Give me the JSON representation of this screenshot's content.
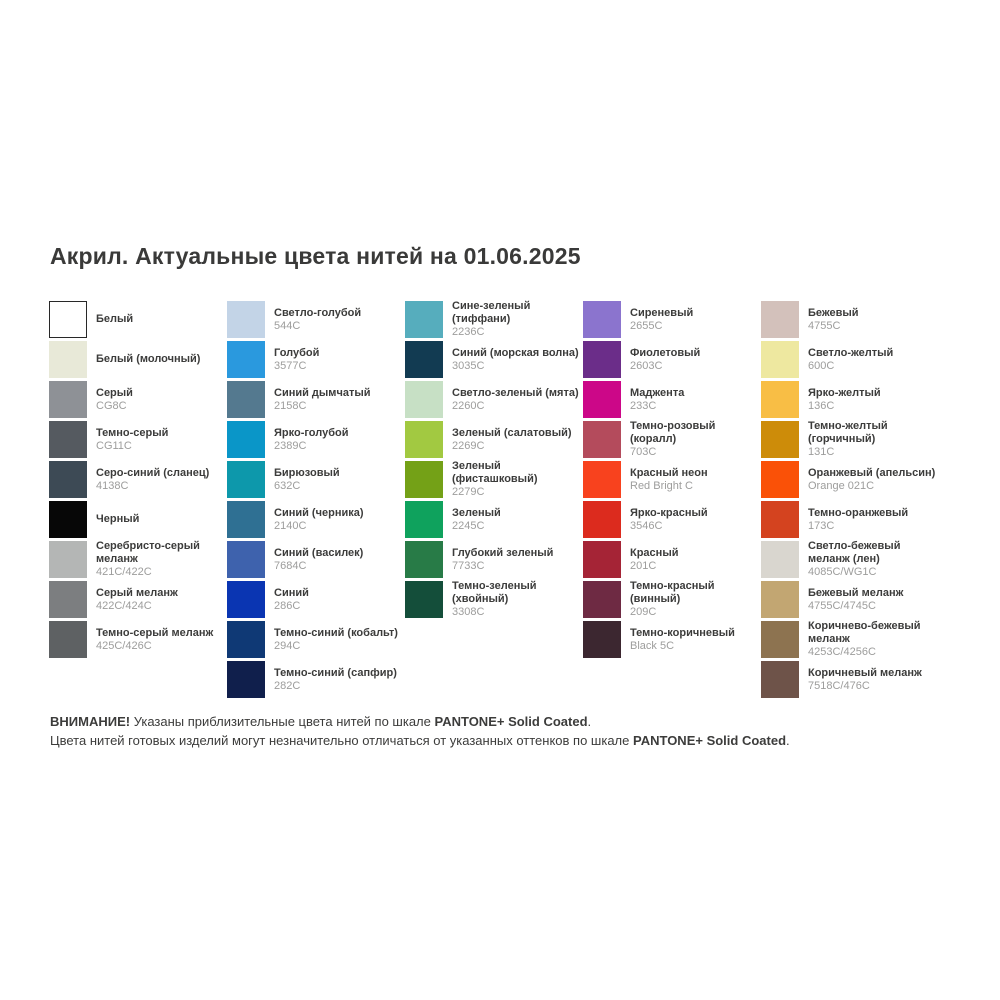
{
  "title": "Акрил. Актуальные цвета нитей на 01.06.2025",
  "columns": [
    {
      "items": [
        {
          "name": "Белый",
          "code": "",
          "color": "#ffffff",
          "border": true
        },
        {
          "name": "Белый (молочный)",
          "code": "",
          "color": "#e8e9d8"
        },
        {
          "name": "Серый",
          "code": "CG8C",
          "color": "#8e9196"
        },
        {
          "name": "Темно-серый",
          "code": "CG11C",
          "color": "#555a60"
        },
        {
          "name": "Серо-синий (сланец)",
          "code": "4138C",
          "color": "#3d4a55"
        },
        {
          "name": "Черный",
          "code": "",
          "color": "#070707"
        },
        {
          "name": "Серебристо-серый меланж",
          "code": "421C/422C",
          "color": "#b4b6b5"
        },
        {
          "name": "Серый меланж",
          "code": "422C/424C",
          "color": "#7c7e80"
        },
        {
          "name": "Темно-серый меланж",
          "code": "425C/426C",
          "color": "#5e6163"
        }
      ]
    },
    {
      "items": [
        {
          "name": "Светло-голубой",
          "code": "544C",
          "color": "#c3d4e7"
        },
        {
          "name": "Голубой",
          "code": "3577C",
          "color": "#2a99de"
        },
        {
          "name": "Синий дымчатый",
          "code": "2158C",
          "color": "#54798f"
        },
        {
          "name": "Ярко-голубой",
          "code": "2389C",
          "color": "#0a96c8"
        },
        {
          "name": "Бирюзовый",
          "code": "632C",
          "color": "#0d98ab"
        },
        {
          "name": "Синий (черника)",
          "code": "2140C",
          "color": "#2f7093"
        },
        {
          "name": "Синий (василек)",
          "code": "7684C",
          "color": "#3e62ad"
        },
        {
          "name": "Синий",
          "code": "286C",
          "color": "#0a35b2"
        },
        {
          "name": "Темно-синий (кобальт)",
          "code": "294C",
          "color": "#0f3975"
        },
        {
          "name": "Темно-синий (сапфир)",
          "code": "282C",
          "color": "#101f4c"
        }
      ]
    },
    {
      "items": [
        {
          "name": "Сине-зеленый (тиффани)",
          "code": "2236C",
          "color": "#56adbd"
        },
        {
          "name": "Синий (морская волна)",
          "code": "3035C",
          "color": "#123b52"
        },
        {
          "name": "Светло-зеленый (мята)",
          "code": "2260C",
          "color": "#c7e0c5"
        },
        {
          "name": "Зеленый (салатовый)",
          "code": "2269C",
          "color": "#a2c941"
        },
        {
          "name": "Зеленый (фисташковый)",
          "code": "2279C",
          "color": "#74a117"
        },
        {
          "name": "Зеленый",
          "code": "2245C",
          "color": "#0fa25d"
        },
        {
          "name": "Глубокий зеленый",
          "code": "7733C",
          "color": "#287b47"
        },
        {
          "name": "Темно-зеленый (хвойный)",
          "code": "3308C",
          "color": "#144e3a"
        }
      ]
    },
    {
      "items": [
        {
          "name": "Сиреневый",
          "code": "2655C",
          "color": "#8b74ce"
        },
        {
          "name": "Фиолетовый",
          "code": "2603C",
          "color": "#6b2d89"
        },
        {
          "name": "Маджента",
          "code": "233C",
          "color": "#cc0788"
        },
        {
          "name": "Темно-розовый (коралл)",
          "code": "703C",
          "color": "#b44b5c"
        },
        {
          "name": "Красный неон",
          "code": "Red Bright C",
          "color": "#f8421e"
        },
        {
          "name": "Ярко-красный",
          "code": "3546C",
          "color": "#dc2b1e"
        },
        {
          "name": "Красный",
          "code": "201C",
          "color": "#a52436"
        },
        {
          "name": "Темно-красный (винный)",
          "code": "209C",
          "color": "#6e2a43"
        },
        {
          "name": "Темно-коричневый",
          "code": "Black 5C",
          "color": "#3c2730"
        }
      ]
    },
    {
      "items": [
        {
          "name": "Бежевый",
          "code": "4755C",
          "color": "#d3c1bb"
        },
        {
          "name": "Светло-желтый",
          "code": "600C",
          "color": "#eee8a0"
        },
        {
          "name": "Ярко-желтый",
          "code": "136C",
          "color": "#f8be45"
        },
        {
          "name": "Темно-желтый (горчичный)",
          "code": "131C",
          "color": "#cd8c09"
        },
        {
          "name": "Оранжевый (апельсин)",
          "code": "Orange 021C",
          "color": "#fa5107"
        },
        {
          "name": "Темно-оранжевый",
          "code": "173C",
          "color": "#d4431f"
        },
        {
          "name": "Светло-бежевый меланж (лен)",
          "code": "4085C/WG1C",
          "color": "#d9d6cf"
        },
        {
          "name": "Бежевый меланж",
          "code": "4755C/4745C",
          "color": "#c2a672"
        },
        {
          "name": "Коричнево-бежевый меланж",
          "code": "4253C/4256C",
          "color": "#8d7350"
        },
        {
          "name": "Коричневый меланж",
          "code": "7518C/476C",
          "color": "#6e5349"
        }
      ]
    }
  ],
  "notes": [
    {
      "bold1": "ВНИМАНИЕ!",
      "text": " Указаны приблизительные цвета нитей по шкале ",
      "bold2": "PANTONE+ Solid Coated",
      "end": "."
    },
    {
      "bold1": "",
      "text": "Цвета нитей готовых изделий могут незначительно отличаться от указанных оттенков по шкале ",
      "bold2": "PANTONE+ Solid Coated",
      "end": "."
    }
  ]
}
